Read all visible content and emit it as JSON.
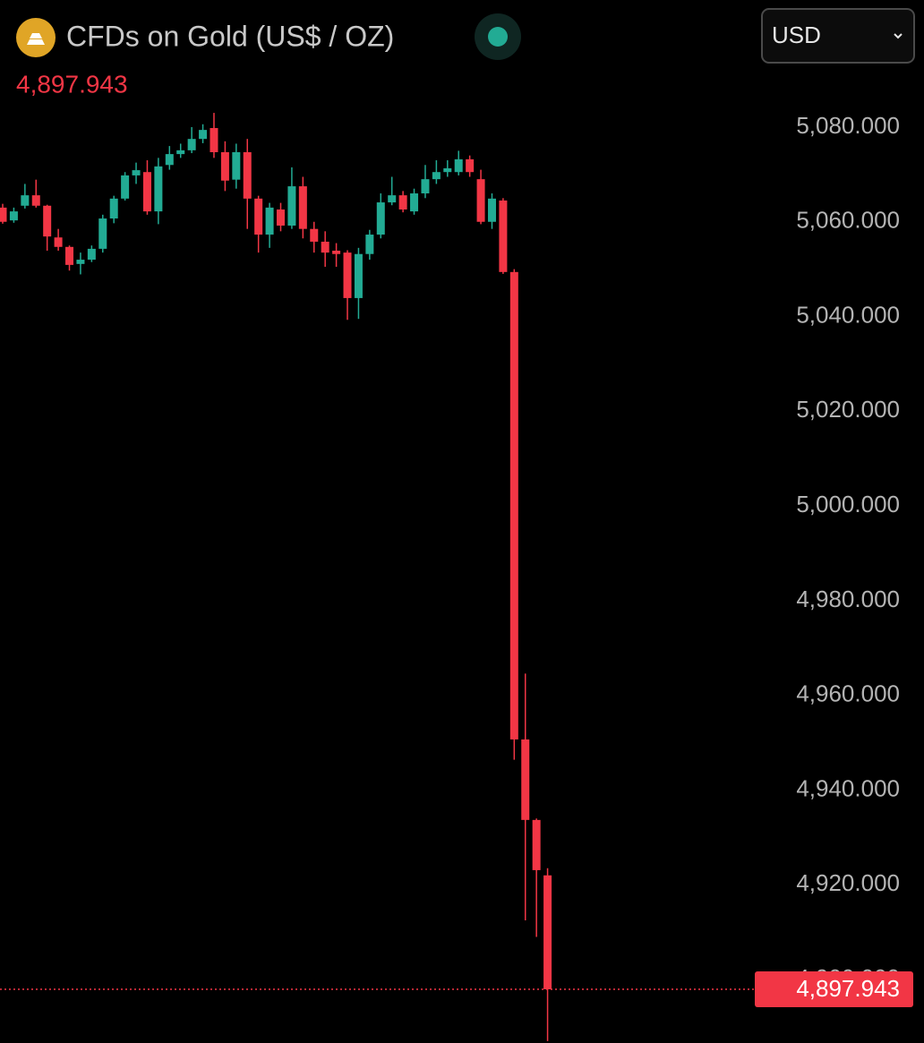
{
  "chart_data": {
    "type": "candlestick",
    "title": "CFDs on Gold (US$ / OZ)",
    "currency": "USD",
    "last_price": {
      "value": 4897.943,
      "label": "4,897.943"
    },
    "up_color": "#22ab94",
    "down_color": "#f23645",
    "open": [
      5063.0,
      5060.3,
      5063.4,
      5065.6,
      5063.4,
      5056.7,
      5054.7,
      5051.1,
      5052.0,
      5054.3,
      5060.7,
      5064.9,
      5069.8,
      5070.5,
      5062.2,
      5072.0,
      5074.3,
      5075.1,
      5077.5,
      5079.8,
      5074.7,
      5068.9,
      5074.7,
      5064.9,
      5057.3,
      5062.6,
      5059.2,
      5067.5,
      5058.5,
      5055.8,
      5053.9,
      5053.5,
      5043.9,
      5053.2,
      5057.3,
      5064.1,
      5065.6,
      5062.2,
      5066.0,
      5069.0,
      5070.5,
      5070.5,
      5073.2,
      5069.0,
      5060.0,
      5064.5,
      5049.4,
      4950.7,
      4933.7,
      4922.0
    ],
    "high": [
      5063.8,
      5063.0,
      5068.0,
      5068.9,
      5063.6,
      5058.5,
      5055.0,
      5053.5,
      5055.0,
      5061.5,
      5065.5,
      5070.5,
      5072.5,
      5073.0,
      5073.5,
      5076.0,
      5076.5,
      5080.0,
      5080.6,
      5083.0,
      5077.0,
      5076.5,
      5077.5,
      5065.5,
      5064.0,
      5064.0,
      5071.5,
      5069.5,
      5060.0,
      5058.0,
      5055.5,
      5054.0,
      5054.5,
      5058.3,
      5066.0,
      5069.5,
      5066.5,
      5067.0,
      5072.0,
      5073.0,
      5073.0,
      5075.0,
      5074.0,
      5071.0,
      5066.0,
      5065.0,
      5050.0,
      4964.6,
      4934.0,
      4923.5
    ],
    "low": [
      5059.6,
      5059.8,
      5062.8,
      5063.0,
      5053.9,
      5053.9,
      5049.7,
      5048.9,
      5051.5,
      5053.5,
      5059.7,
      5064.5,
      5068.0,
      5061.5,
      5059.5,
      5071.0,
      5073.5,
      5074.5,
      5076.6,
      5073.5,
      5066.5,
      5067.0,
      5058.5,
      5053.5,
      5054.5,
      5058.0,
      5058.5,
      5056.5,
      5053.5,
      5050.5,
      5050.5,
      5039.3,
      5039.5,
      5052.0,
      5056.5,
      5063.5,
      5062.0,
      5061.5,
      5065.0,
      5068.0,
      5069.5,
      5069.8,
      5069.5,
      5059.5,
      5058.5,
      5049.0,
      4946.4,
      4912.5,
      4909.0,
      4887.0
    ],
    "close": [
      5060.0,
      5062.2,
      5065.6,
      5063.4,
      5056.9,
      5054.7,
      5050.9,
      5052.0,
      5054.3,
      5060.7,
      5064.9,
      5069.8,
      5070.9,
      5062.2,
      5071.7,
      5074.3,
      5075.1,
      5077.5,
      5079.4,
      5074.7,
      5068.7,
      5074.7,
      5064.9,
      5057.3,
      5063.0,
      5059.2,
      5067.5,
      5058.5,
      5055.8,
      5053.5,
      5053.2,
      5043.9,
      5053.2,
      5057.3,
      5064.1,
      5065.6,
      5062.6,
      5066.0,
      5069.0,
      5070.5,
      5071.3,
      5073.2,
      5070.5,
      5060.0,
      5064.9,
      5049.4,
      4950.7,
      4933.7,
      4923.1,
      4897.943
    ],
    "ylim": [
      4886.6,
      5083.3
    ],
    "yticks": [
      {
        "value": 4900,
        "label": "4,900.000"
      },
      {
        "value": 4920,
        "label": "4,920.000"
      },
      {
        "value": 4940,
        "label": "4,940.000"
      },
      {
        "value": 4960,
        "label": "4,960.000"
      },
      {
        "value": 4980,
        "label": "4,980.000"
      },
      {
        "value": 5000,
        "label": "5,000.000"
      },
      {
        "value": 5020,
        "label": "5,020.000"
      },
      {
        "value": 5040,
        "label": "5,040.000"
      },
      {
        "value": 5060,
        "label": "5,060.000"
      },
      {
        "value": 5080,
        "label": "5,080.000"
      }
    ]
  }
}
